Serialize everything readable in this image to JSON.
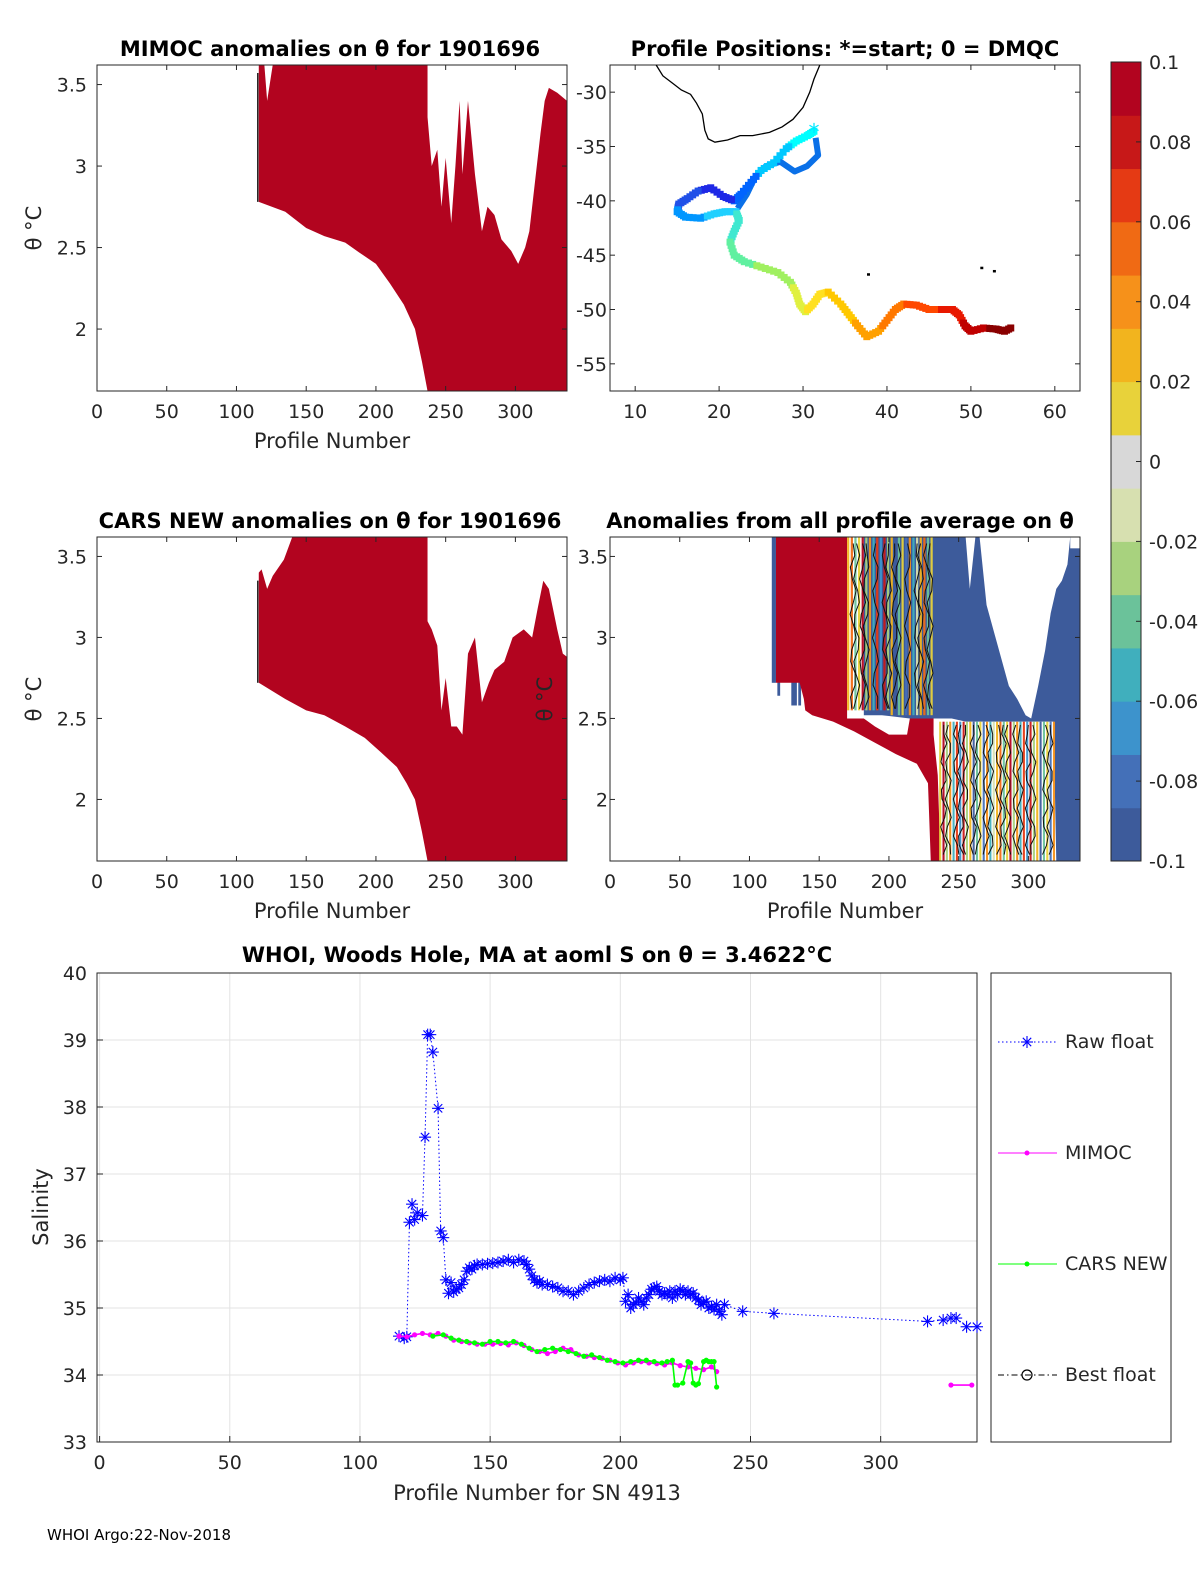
{
  "chart_data": [
    {
      "type": "heatmap",
      "title": "MIMOC anomalies on θ  for 1901696",
      "xlabel": "Profile Number",
      "ylabel": "θ °C",
      "xlim": [
        0,
        337
      ],
      "ylim": [
        1.62,
        3.62
      ],
      "xticks": [
        "0",
        "50",
        "100",
        "150",
        "200",
        "250",
        "300"
      ],
      "yticks": [
        "2",
        "2.5",
        "3",
        "3.5"
      ],
      "fill_color": "#b2041f",
      "top_boundary": [
        [
          116,
          3.62
        ],
        [
          120,
          3.62
        ],
        [
          122,
          3.4
        ],
        [
          126,
          3.62
        ],
        [
          237,
          3.62
        ],
        [
          237,
          3.3
        ],
        [
          240,
          3.0
        ],
        [
          244,
          3.1
        ],
        [
          247,
          2.75
        ],
        [
          250,
          3.05
        ],
        [
          254,
          2.65
        ],
        [
          257,
          3.0
        ],
        [
          260,
          3.4
        ],
        [
          262,
          2.95
        ],
        [
          266,
          3.4
        ],
        [
          271,
          2.95
        ],
        [
          276,
          2.6
        ],
        [
          280,
          2.75
        ],
        [
          285,
          2.7
        ],
        [
          290,
          2.55
        ],
        [
          297,
          2.48
        ],
        [
          302,
          2.4
        ],
        [
          307,
          2.5
        ],
        [
          310,
          2.6
        ],
        [
          314,
          2.9
        ],
        [
          318,
          3.2
        ],
        [
          321,
          3.4
        ],
        [
          324,
          3.48
        ],
        [
          330,
          3.45
        ],
        [
          337,
          3.4
        ],
        [
          337,
          1.62
        ]
      ],
      "bottom_boundary": [
        [
          116,
          2.78
        ],
        [
          135,
          2.72
        ],
        [
          150,
          2.62
        ],
        [
          163,
          2.57
        ],
        [
          178,
          2.53
        ],
        [
          188,
          2.47
        ],
        [
          200,
          2.4
        ],
        [
          210,
          2.28
        ],
        [
          220,
          2.15
        ],
        [
          228,
          2.0
        ],
        [
          233,
          1.8
        ],
        [
          237,
          1.62
        ]
      ]
    },
    {
      "type": "scatter",
      "title": "Profile Positions: *=start; 0 = DMQC",
      "xlim": [
        7,
        63
      ],
      "ylim": [
        -57.5,
        -27.5
      ],
      "xticks": [
        "10",
        "20",
        "30",
        "40",
        "50",
        "60"
      ],
      "yticks": [
        "-30",
        "-35",
        "-40",
        "-45",
        "-50",
        "-55"
      ],
      "track": [
        [
          31.3,
          -33.6
        ],
        [
          30.5,
          -34.0
        ],
        [
          29.2,
          -34.5
        ],
        [
          28.0,
          -35.2
        ],
        [
          26.5,
          -36.5
        ],
        [
          25.0,
          -37.2
        ],
        [
          23.8,
          -38.3
        ],
        [
          22.6,
          -39.4
        ],
        [
          21.8,
          -40.0
        ],
        [
          20.5,
          -39.6
        ],
        [
          19.0,
          -38.8
        ],
        [
          17.5,
          -39.1
        ],
        [
          16.2,
          -39.8
        ],
        [
          15.2,
          -40.3
        ],
        [
          15.0,
          -41.0
        ],
        [
          16.0,
          -41.5
        ],
        [
          17.8,
          -41.6
        ],
        [
          19.4,
          -41.2
        ],
        [
          20.7,
          -41.0
        ],
        [
          22.0,
          -41.0
        ],
        [
          22.4,
          -41.8
        ],
        [
          21.8,
          -42.8
        ],
        [
          21.3,
          -43.8
        ],
        [
          21.8,
          -45.0
        ],
        [
          23.0,
          -45.6
        ],
        [
          25.0,
          -46.1
        ],
        [
          27.0,
          -46.6
        ],
        [
          28.5,
          -47.5
        ],
        [
          29.2,
          -48.5
        ],
        [
          29.6,
          -49.5
        ],
        [
          30.3,
          -50.2
        ],
        [
          31.2,
          -49.5
        ],
        [
          32.0,
          -48.6
        ],
        [
          33.0,
          -48.4
        ],
        [
          34.5,
          -49.5
        ],
        [
          35.5,
          -50.5
        ],
        [
          36.5,
          -51.5
        ],
        [
          37.6,
          -52.5
        ],
        [
          39.0,
          -52.0
        ],
        [
          40.0,
          -51.0
        ],
        [
          41.0,
          -50.0
        ],
        [
          42.0,
          -49.5
        ],
        [
          43.5,
          -49.6
        ],
        [
          45.0,
          -50.0
        ],
        [
          46.5,
          -50.0
        ],
        [
          47.8,
          -50.0
        ],
        [
          48.6,
          -50.5
        ],
        [
          49.3,
          -51.5
        ],
        [
          50.0,
          -52.0
        ],
        [
          51.5,
          -51.7
        ],
        [
          53.0,
          -51.8
        ],
        [
          54.0,
          -52.0
        ],
        [
          55.0,
          -51.6
        ]
      ],
      "loop": [
        [
          22.2,
          -40.7
        ],
        [
          23.3,
          -39.4
        ],
        [
          24.3,
          -37.8
        ],
        [
          25.6,
          -36.8
        ],
        [
          27.3,
          -36.4
        ],
        [
          29.0,
          -37.3
        ],
        [
          30.5,
          -36.8
        ],
        [
          31.8,
          -35.8
        ],
        [
          31.5,
          -34.2
        ]
      ],
      "coast": [
        [
          12.5,
          -27.5
        ],
        [
          13.3,
          -28.5
        ],
        [
          14.5,
          -29.2
        ],
        [
          15.5,
          -29.8
        ],
        [
          16.6,
          -30.2
        ],
        [
          17.3,
          -31.0
        ],
        [
          18.0,
          -32.0
        ],
        [
          18.3,
          -33.5
        ],
        [
          18.7,
          -34.3
        ],
        [
          19.5,
          -34.6
        ],
        [
          21.0,
          -34.4
        ],
        [
          22.5,
          -34.0
        ],
        [
          24.0,
          -34.0
        ],
        [
          26.0,
          -33.7
        ],
        [
          27.5,
          -33.2
        ],
        [
          28.8,
          -32.5
        ],
        [
          30.0,
          -31.4
        ],
        [
          30.8,
          -30.0
        ],
        [
          31.3,
          -28.8
        ],
        [
          32.0,
          -27.5
        ]
      ]
    },
    {
      "type": "heatmap",
      "title": "CARS NEW anomalies on θ for 1901696",
      "xlabel": "Profile Number",
      "ylabel": "θ °C",
      "xlim": [
        0,
        337
      ],
      "ylim": [
        1.62,
        3.62
      ],
      "xticks": [
        "0",
        "50",
        "100",
        "150",
        "200",
        "250",
        "300"
      ],
      "yticks": [
        "2",
        "2.5",
        "3",
        "3.5"
      ],
      "fill_color": "#b2041f",
      "top_boundary": [
        [
          116,
          3.4
        ],
        [
          118,
          3.42
        ],
        [
          122,
          3.3
        ],
        [
          126,
          3.38
        ],
        [
          134,
          3.48
        ],
        [
          140,
          3.62
        ],
        [
          237,
          3.62
        ],
        [
          237,
          3.1
        ],
        [
          240,
          3.05
        ],
        [
          244,
          2.95
        ],
        [
          247,
          2.55
        ],
        [
          250,
          2.75
        ],
        [
          254,
          2.45
        ],
        [
          258,
          2.45
        ],
        [
          262,
          2.4
        ],
        [
          266,
          2.9
        ],
        [
          271,
          3.0
        ],
        [
          276,
          2.6
        ],
        [
          281,
          2.72
        ],
        [
          285,
          2.8
        ],
        [
          292,
          2.85
        ],
        [
          298,
          3.0
        ],
        [
          306,
          3.05
        ],
        [
          312,
          3.0
        ],
        [
          316,
          3.18
        ],
        [
          320,
          3.35
        ],
        [
          324,
          3.3
        ],
        [
          330,
          3.05
        ],
        [
          334,
          2.9
        ],
        [
          337,
          2.88
        ],
        [
          337,
          1.62
        ]
      ],
      "bottom_boundary": [
        [
          116,
          2.72
        ],
        [
          135,
          2.62
        ],
        [
          150,
          2.55
        ],
        [
          163,
          2.52
        ],
        [
          178,
          2.45
        ],
        [
          192,
          2.38
        ],
        [
          205,
          2.28
        ],
        [
          215,
          2.2
        ],
        [
          222,
          2.1
        ],
        [
          228,
          2.0
        ],
        [
          233,
          1.8
        ],
        [
          237,
          1.62
        ]
      ]
    },
    {
      "type": "heatmap",
      "title": "Anomalies from all profile average on θ",
      "xlabel": "Profile Number",
      "ylabel": "θ °C",
      "xlim": [
        0,
        337
      ],
      "ylim": [
        1.62,
        3.62
      ],
      "xticks": [
        "0",
        "50",
        "100",
        "150",
        "200",
        "250",
        "300"
      ],
      "yticks": [
        "2",
        "2.5",
        "3",
        "3.5"
      ],
      "colorbar": {
        "limits": [
          -0.1,
          0.1
        ],
        "ticks": [
          "0.1",
          "0.08",
          "0.06",
          "0.04",
          "0.02",
          "0",
          "-0.02",
          "-0.04",
          "-0.06",
          "-0.08",
          "-0.1"
        ],
        "colors": [
          "#3d5b9b",
          "#4470b8",
          "#3d93cc",
          "#40afbd",
          "#6bc29a",
          "#a8d27e",
          "#d7e0b0",
          "#d8d8d8",
          "#e8d23a",
          "#f2b41e",
          "#f6911a",
          "#f06a14",
          "#e53a14",
          "#c71818",
          "#b2041f"
        ]
      }
    },
    {
      "type": "line",
      "title": "WHOI, Woods Hole, MA at aoml S on θ = 3.4622°C",
      "xlabel": "Profile Number for SN 4913",
      "ylabel": "Salinity",
      "xlim": [
        -1,
        337
      ],
      "ylim": [
        33,
        40
      ],
      "xticks": [
        "0",
        "50",
        "100",
        "150",
        "200",
        "250",
        "300"
      ],
      "yticks": [
        "33",
        "34",
        "35",
        "36",
        "37",
        "38",
        "39",
        "40"
      ],
      "grid": true,
      "legend_position": "outside-right",
      "series": [
        {
          "name": "Raw float",
          "color": "#0000ff",
          "marker": "asterisk",
          "style": "dotted",
          "x": [
            115,
            117,
            118,
            119,
            120,
            121,
            122,
            124,
            125,
            126,
            127,
            128,
            130,
            131,
            132,
            133,
            134,
            135,
            136,
            137,
            138,
            139,
            140,
            141,
            142,
            143,
            144,
            145,
            147,
            149,
            151,
            153,
            155,
            157,
            159,
            161,
            163,
            164,
            165,
            166,
            167,
            168,
            169,
            170,
            172,
            174,
            176,
            178,
            180,
            182,
            184,
            186,
            188,
            190,
            192,
            194,
            196,
            198,
            200,
            201,
            202,
            203,
            204,
            205,
            206,
            207,
            208,
            209,
            210,
            211,
            212,
            213,
            214,
            215,
            216,
            217,
            218,
            219,
            220,
            221,
            222,
            223,
            224,
            225,
            226,
            227,
            228,
            229,
            230,
            231,
            232,
            233,
            234,
            235,
            236,
            237,
            238,
            239,
            240,
            247,
            259,
            318,
            324,
            327,
            329,
            333,
            337
          ],
          "y": [
            34.58,
            34.55,
            34.57,
            36.28,
            36.55,
            36.32,
            36.42,
            36.38,
            37.55,
            39.08,
            39.08,
            38.82,
            37.98,
            36.15,
            36.05,
            35.42,
            35.22,
            35.38,
            35.24,
            35.28,
            35.3,
            35.35,
            35.42,
            35.55,
            35.6,
            35.58,
            35.63,
            35.65,
            35.65,
            35.66,
            35.67,
            35.68,
            35.7,
            35.72,
            35.68,
            35.72,
            35.7,
            35.65,
            35.58,
            35.48,
            35.42,
            35.38,
            35.4,
            35.35,
            35.35,
            35.32,
            35.3,
            35.25,
            35.25,
            35.2,
            35.25,
            35.3,
            35.35,
            35.38,
            35.4,
            35.42,
            35.4,
            35.45,
            35.42,
            35.45,
            35.1,
            35.2,
            35.0,
            35.05,
            35.08,
            35.15,
            35.1,
            35.05,
            35.15,
            35.2,
            35.28,
            35.3,
            35.32,
            35.25,
            35.2,
            35.22,
            35.2,
            35.25,
            35.15,
            35.25,
            35.2,
            35.28,
            35.25,
            35.2,
            35.25,
            35.2,
            35.22,
            35.15,
            35.12,
            35.05,
            35.08,
            35.1,
            35.0,
            35.02,
            34.98,
            35.05,
            34.95,
            34.9,
            35.05,
            34.95,
            34.92,
            34.8,
            34.82,
            34.85,
            34.85,
            34.72,
            34.72
          ]
        },
        {
          "name": "MIMOC",
          "color": "#ff00ff",
          "marker": "dot",
          "style": "solid",
          "x": [
            115,
            118,
            121,
            124,
            127,
            130,
            133,
            136,
            139,
            142,
            145,
            148,
            151,
            154,
            157,
            160,
            163,
            166,
            169,
            172,
            175,
            178,
            181,
            184,
            187,
            190,
            193,
            196,
            199,
            202,
            205,
            208,
            211,
            214,
            217,
            220,
            223,
            226,
            229,
            232,
            235,
            237,
            327,
            335
          ],
          "y": [
            34.58,
            34.57,
            34.6,
            34.62,
            34.6,
            34.62,
            34.58,
            34.52,
            34.5,
            34.48,
            34.46,
            34.46,
            34.46,
            34.47,
            34.45,
            34.48,
            34.44,
            34.38,
            34.35,
            34.32,
            34.35,
            34.4,
            34.38,
            34.3,
            34.28,
            34.26,
            34.25,
            34.22,
            34.18,
            34.15,
            34.18,
            34.2,
            34.18,
            34.17,
            34.15,
            34.18,
            34.14,
            34.12,
            34.1,
            34.08,
            34.12,
            34.05,
            33.85,
            33.85
          ]
        },
        {
          "name": "CARS NEW",
          "color": "#00ff00",
          "marker": "dot",
          "style": "solid",
          "x": [
            128,
            132,
            135,
            138,
            141,
            144,
            147,
            150,
            153,
            156,
            159,
            162,
            165,
            168,
            171,
            174,
            177,
            180,
            183,
            186,
            189,
            192,
            195,
            198,
            201,
            204,
            207,
            210,
            213,
            216,
            218,
            220,
            221,
            222,
            224,
            226,
            227,
            228,
            229,
            230,
            232,
            233,
            234,
            235,
            236,
            237
          ],
          "y": [
            34.58,
            34.6,
            34.55,
            34.52,
            34.5,
            34.48,
            34.46,
            34.5,
            34.5,
            34.48,
            34.5,
            34.46,
            34.4,
            34.35,
            34.38,
            34.4,
            34.38,
            34.35,
            34.32,
            34.28,
            34.3,
            34.26,
            34.22,
            34.2,
            34.18,
            34.2,
            34.22,
            34.22,
            34.2,
            34.18,
            34.2,
            34.22,
            33.85,
            33.85,
            33.88,
            34.2,
            34.18,
            33.88,
            33.85,
            33.87,
            34.2,
            34.22,
            34.2,
            34.2,
            34.2,
            33.82
          ]
        },
        {
          "name": "Best float",
          "color": "#000000",
          "marker": "circle",
          "style": "dashdot",
          "x": [],
          "y": []
        }
      ]
    }
  ],
  "footer": "WHOI Argo:22-Nov-2018"
}
